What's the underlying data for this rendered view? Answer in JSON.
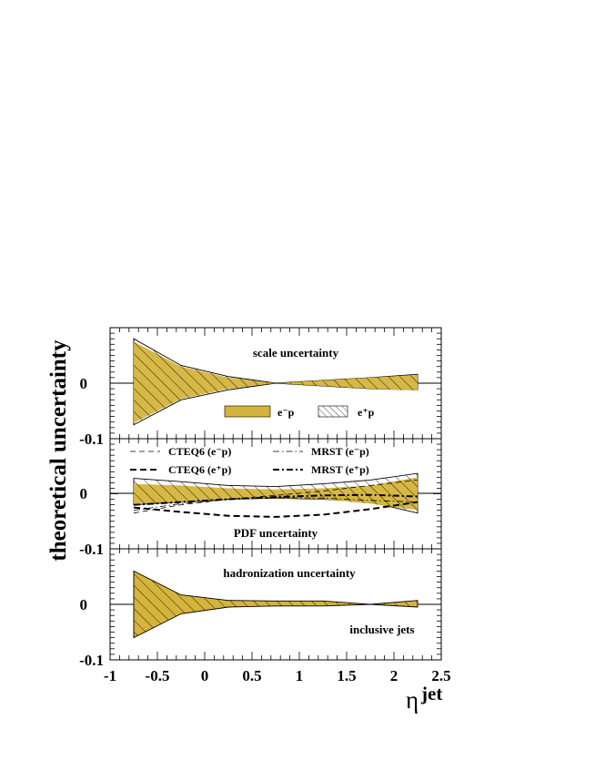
{
  "chart_data": {
    "type": "area",
    "colors": {
      "fill": "#d4b43c",
      "hatch": "#000000",
      "frame": "#000000"
    },
    "x_axis": {
      "label": "η",
      "label_superscript": "jet",
      "range": [
        -1,
        2.5
      ],
      "ticks": [
        -1,
        -0.5,
        0,
        0.5,
        1,
        1.5,
        2,
        2.5
      ],
      "tick_labels": [
        "-1",
        "-0.5",
        "0",
        "0.5",
        "1",
        "1.5",
        "2",
        "2.5"
      ]
    },
    "y_axis": {
      "label": "theoretical uncertainty",
      "tick_labels_top": [
        "0"
      ],
      "tick_labels_shared": [
        "-0.1",
        "-0.1",
        "-0.1"
      ]
    },
    "panels": [
      {
        "name": "scale uncertainty",
        "title": "scale uncertainty",
        "ylim": [
          -0.1,
          0.1
        ],
        "x": [
          -0.75,
          -0.25,
          0.25,
          0.75,
          1.25,
          1.75,
          2.25
        ],
        "em_upper": [
          0.075,
          0.03,
          0.01,
          0.0,
          -0.005,
          -0.01,
          -0.013
        ],
        "em_lower": [
          -0.072,
          -0.028,
          -0.01,
          0.0,
          0.005,
          0.01,
          0.015
        ],
        "ep_upper": [
          0.08,
          0.032,
          0.012,
          0.0,
          -0.005,
          -0.01,
          -0.012
        ],
        "ep_lower": [
          -0.075,
          -0.03,
          -0.012,
          0.0,
          0.005,
          0.01,
          0.016
        ],
        "legend": {
          "em_label": "e⁻p",
          "ep_label": "e⁺p"
        }
      },
      {
        "name": "PDF uncertainty",
        "title": "PDF uncertainty",
        "ylim": [
          -0.1,
          0.1
        ],
        "x": [
          -0.75,
          -0.25,
          0.25,
          0.75,
          1.25,
          1.75,
          2.25
        ],
        "em_upper": [
          0.018,
          0.015,
          0.01,
          0.008,
          0.01,
          0.015,
          0.03
        ],
        "em_lower": [
          -0.018,
          -0.015,
          -0.01,
          -0.008,
          -0.01,
          -0.018,
          -0.03
        ],
        "ep_upper": [
          0.028,
          0.022,
          0.015,
          0.013,
          0.018,
          0.025,
          0.037
        ],
        "ep_lower": [
          -0.02,
          -0.015,
          -0.01,
          -0.008,
          -0.01,
          -0.015,
          -0.035
        ],
        "curves": [
          {
            "name": "CTEQ6 (e⁻p)",
            "style": "dashed-thin",
            "x": [
              -0.75,
              -0.25,
              0.25,
              0.75,
              1.25,
              1.75,
              2.25
            ],
            "y": [
              -0.035,
              -0.02,
              -0.01,
              -0.003,
              0.005,
              0.015,
              0.025
            ]
          },
          {
            "name": "CTEQ6 (e⁺p)",
            "style": "dashed-thick",
            "x": [
              -0.75,
              -0.25,
              0.25,
              0.75,
              1.25,
              1.75,
              2.25
            ],
            "y": [
              -0.025,
              -0.033,
              -0.04,
              -0.042,
              -0.038,
              -0.028,
              -0.015
            ]
          },
          {
            "name": "MRST (e⁻p)",
            "style": "dashdot-thin",
            "x": [
              -0.75,
              -0.25,
              0.25,
              0.75,
              1.25,
              1.75,
              2.25
            ],
            "y": [
              -0.03,
              -0.018,
              -0.01,
              -0.007,
              -0.008,
              -0.012,
              -0.015
            ]
          },
          {
            "name": "MRST (e⁺p)",
            "style": "dashdot-thick",
            "x": [
              -0.75,
              -0.25,
              0.25,
              0.75,
              1.25,
              1.75,
              2.25
            ],
            "y": [
              -0.02,
              -0.015,
              -0.01,
              -0.006,
              -0.003,
              -0.002,
              -0.005
            ]
          }
        ]
      },
      {
        "name": "hadronization uncertainty",
        "title": "hadronization uncertainty",
        "annotation": "inclusive jets",
        "ylim": [
          -0.1,
          0.1
        ],
        "x": [
          -0.75,
          -0.25,
          0.25,
          0.75,
          1.25,
          1.75,
          2.25
        ],
        "upper": [
          0.06,
          0.017,
          0.007,
          0.006,
          0.006,
          0.0,
          0.007
        ],
        "lower": [
          -0.06,
          -0.017,
          -0.005,
          -0.003,
          -0.003,
          0.0,
          -0.005
        ]
      }
    ]
  }
}
